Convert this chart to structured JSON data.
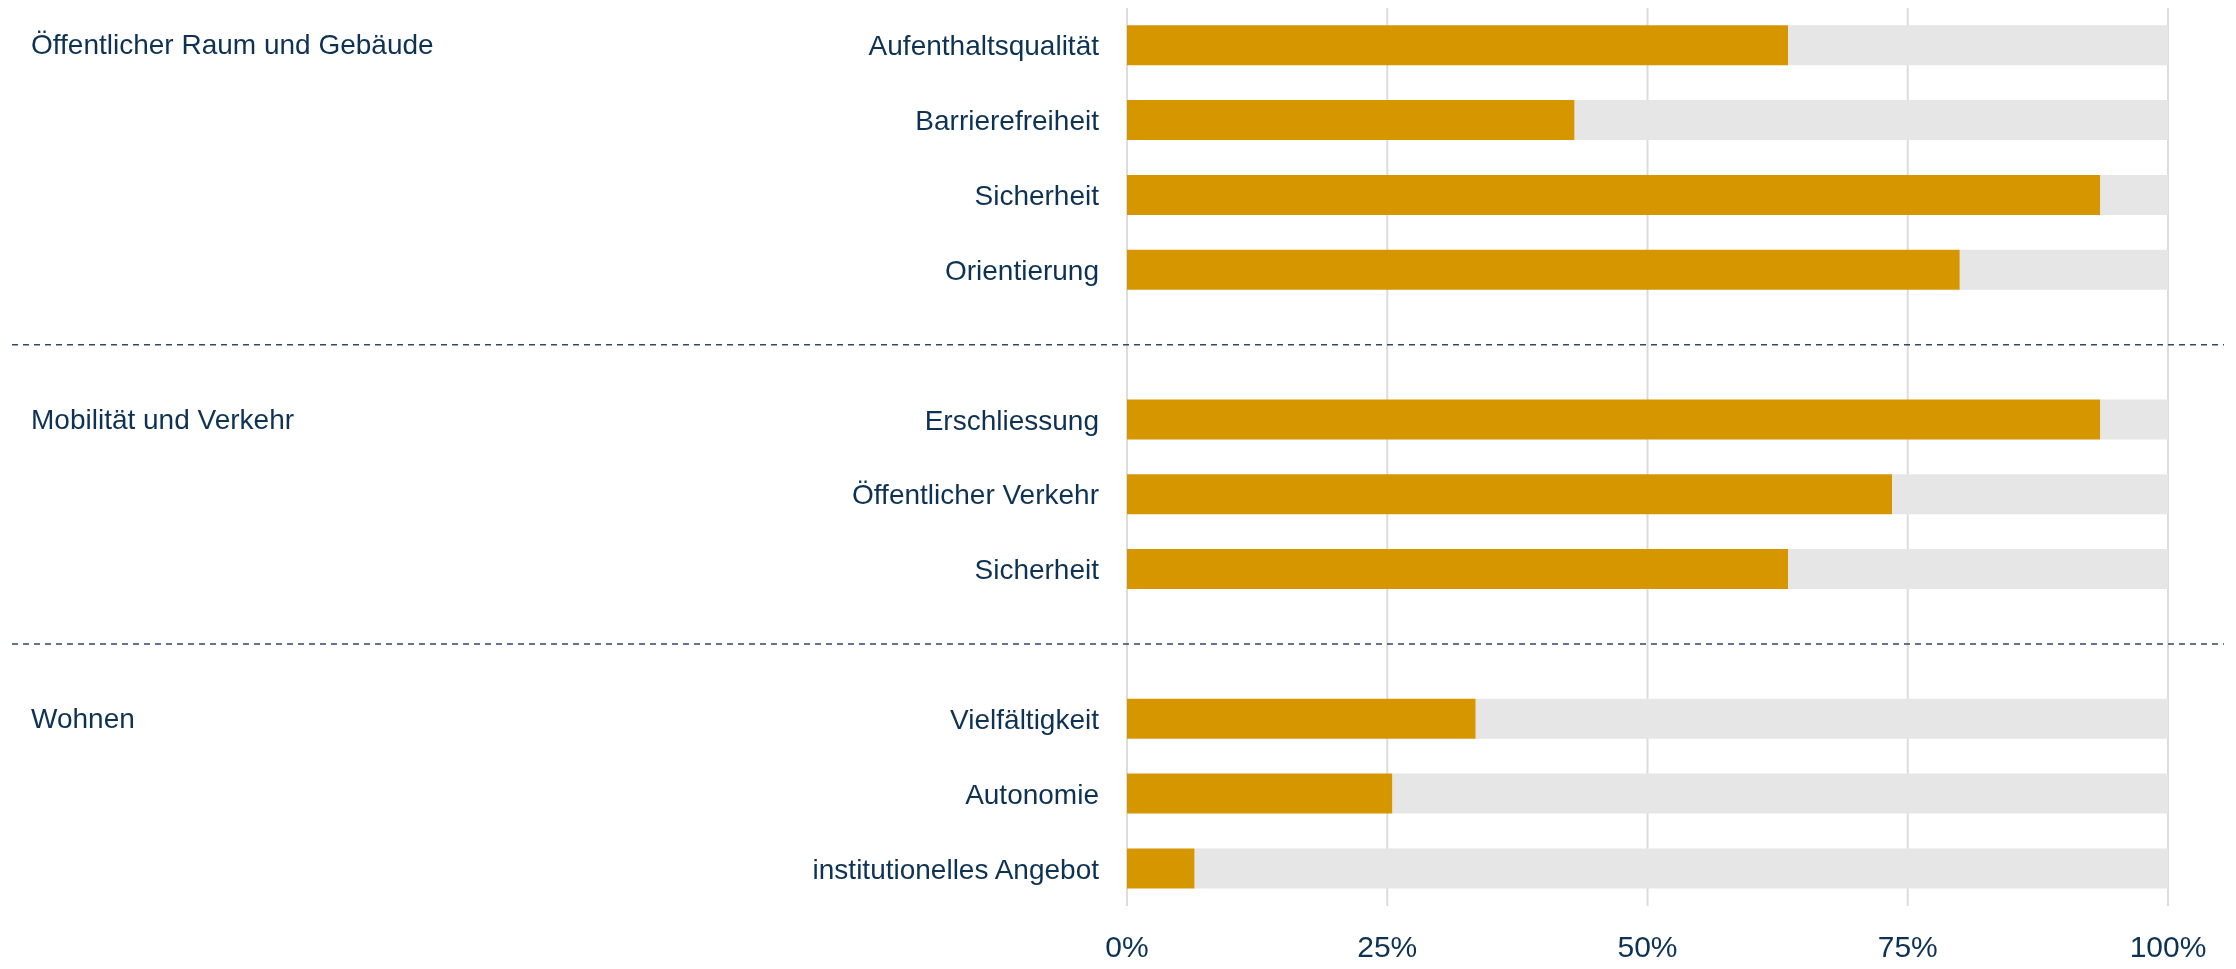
{
  "chart_data": {
    "type": "bar",
    "orientation": "horizontal",
    "stacked": true,
    "categories": [
      "Aufenthaltsqualität",
      "Barrierefreiheit",
      "Sicherheit",
      "Orientierung",
      null,
      "Erschliessung",
      "Öffentlicher Verkehr",
      "Sicherheit",
      null,
      "Vielfältigkeit",
      "Autonomie",
      "institutionelles Angebot"
    ],
    "series": [
      {
        "color": "#d59600",
        "values": [
          63.5,
          43,
          93.5,
          80,
          null,
          93.5,
          73.5,
          63.5,
          null,
          33.5,
          25.5,
          6.5
        ]
      },
      {
        "color": "#e6e6e6",
        "values": [
          36.5,
          57,
          6.5,
          20,
          null,
          6.5,
          26.5,
          36.5,
          null,
          66.5,
          74.5,
          93.5
        ]
      }
    ],
    "xlim": [
      0,
      100
    ],
    "xticks": [
      {
        "value": 0,
        "label": "0%"
      },
      {
        "value": 25,
        "label": "25%"
      },
      {
        "value": 50,
        "label": "50%"
      },
      {
        "value": 75,
        "label": "75%"
      },
      {
        "value": 100,
        "label": "100%"
      }
    ],
    "grid": "x",
    "annotations": [
      "Öffentlicher Raum und Gebäude",
      "Mobilität und Verkehr",
      "Wohnen"
    ]
  }
}
